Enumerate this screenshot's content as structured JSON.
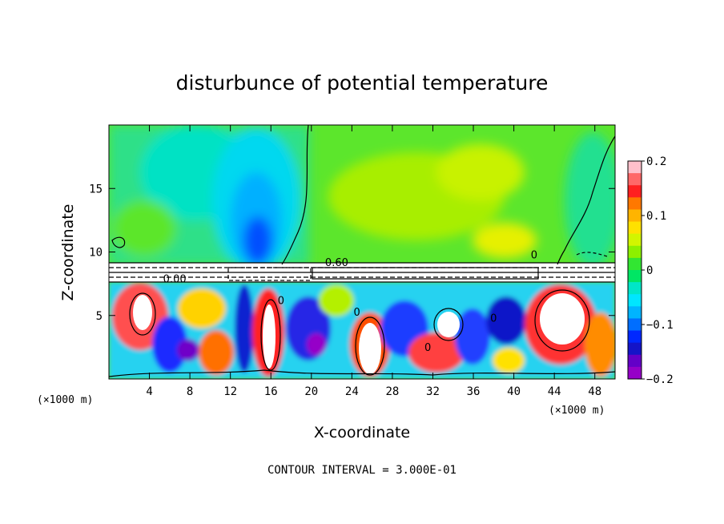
{
  "chart_data": {
    "type": "heatmap",
    "title": "disturbunce of potential temperature",
    "xlabel": "X-coordinate",
    "ylabel": "Z-coordinate",
    "x_unit_label": "(×1000 m)",
    "x_unit_label_right": "(×1000 m)",
    "xlim": [
      0,
      50
    ],
    "ylim": [
      0,
      20
    ],
    "x_ticks": [
      4,
      8,
      12,
      16,
      20,
      24,
      28,
      32,
      36,
      40,
      44,
      48
    ],
    "x_tick_labels": [
      "4",
      "8",
      "12",
      "16",
      "20",
      "24",
      "28",
      "32",
      "36",
      "40",
      "44",
      "48"
    ],
    "y_ticks": [
      5,
      10,
      15
    ],
    "y_tick_labels": [
      "5",
      "10",
      "15"
    ],
    "colorbar": {
      "min": -0.2,
      "max": 0.2,
      "ticks": [
        0.2,
        0.1,
        0,
        -0.1,
        -0.2
      ],
      "tick_labels": [
        "0.2",
        "0.1",
        "0",
        "−0.1",
        "−0.2"
      ],
      "colors": [
        "#ffc0cb",
        "#ff6868",
        "#ff2020",
        "#ff7800",
        "#ffb400",
        "#ffe100",
        "#d2f500",
        "#8cf000",
        "#32e632",
        "#00e664",
        "#00e6c8",
        "#00e6ff",
        "#00b4ff",
        "#006eff",
        "#0028ff",
        "#1414c8",
        "#6400c8",
        "#9600c8"
      ]
    },
    "contour_labels": [
      {
        "text": "0.60",
        "x": 22.5,
        "y": 8.9
      },
      {
        "text": "0.00",
        "x": 6.5,
        "y": 7.6
      },
      {
        "text": "0",
        "x": 42.0,
        "y": 9.5
      },
      {
        "text": "0",
        "x": 17.0,
        "y": 5.9
      },
      {
        "text": "0",
        "x": 24.5,
        "y": 5.0
      },
      {
        "text": "0",
        "x": 31.5,
        "y": 2.2
      },
      {
        "text": "0",
        "x": 38.0,
        "y": 4.5
      }
    ],
    "contour_interval_text": "CONTOUR INTERVAL = 3.000E-01",
    "grid": false,
    "legend": "colorbar-right"
  }
}
